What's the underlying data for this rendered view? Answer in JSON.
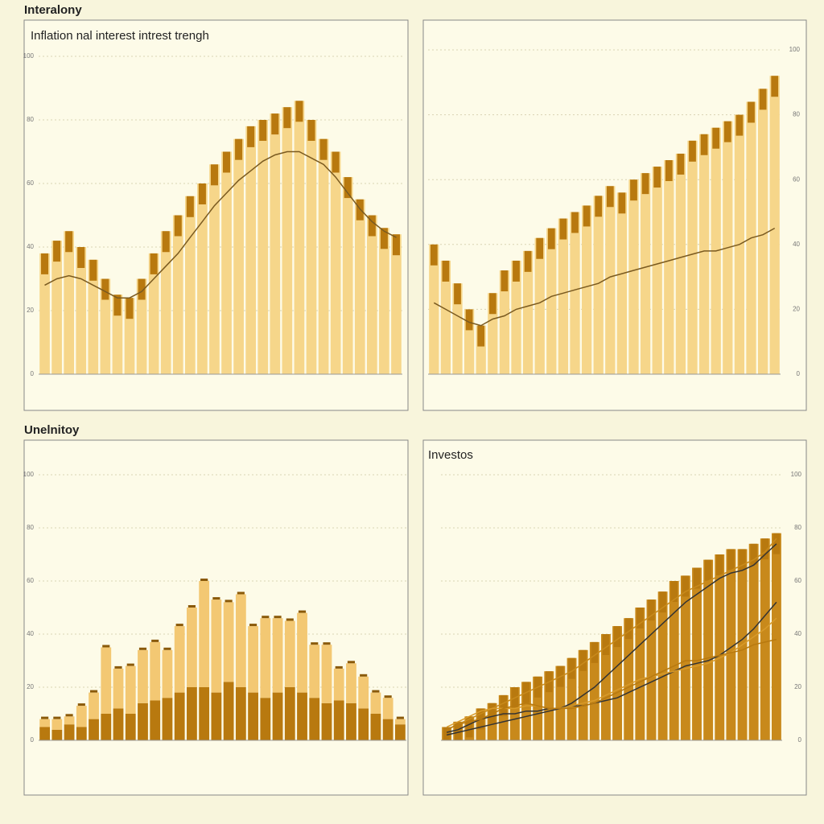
{
  "headings": [
    "Interalony",
    "Unelnitoy"
  ],
  "chart_data": [
    {
      "type": "combo",
      "title": "Inflation nal interest intrest trengh",
      "ylim": [
        0,
        100
      ],
      "yticks": [
        0,
        20,
        40,
        60,
        80,
        100
      ],
      "grid": true,
      "yaxis_side": "left",
      "series": [
        {
          "type": "bar",
          "color": "#b8790f",
          "fill": "#f6d68a",
          "values": [
            38,
            42,
            45,
            40,
            36,
            30,
            25,
            24,
            30,
            38,
            45,
            50,
            56,
            60,
            66,
            70,
            74,
            78,
            80,
            82,
            84,
            86,
            80,
            74,
            70,
            62,
            55,
            50,
            46,
            44
          ]
        },
        {
          "type": "line",
          "color": "#7a5a20",
          "values": [
            28,
            30,
            31,
            30,
            28,
            26,
            24,
            24,
            26,
            30,
            34,
            38,
            43,
            48,
            53,
            57,
            61,
            64,
            67,
            69,
            70,
            70,
            68,
            66,
            62,
            57,
            52,
            48,
            45,
            43
          ]
        }
      ]
    },
    {
      "type": "combo",
      "ylim": [
        0,
        100
      ],
      "yticks": [
        0,
        20,
        40,
        60,
        80,
        100
      ],
      "grid": true,
      "yaxis_side": "right",
      "series": [
        {
          "type": "bar",
          "color": "#b8790f",
          "fill": "#f6d68a",
          "values": [
            40,
            35,
            28,
            20,
            15,
            25,
            32,
            35,
            38,
            42,
            45,
            48,
            50,
            52,
            55,
            58,
            56,
            60,
            62,
            64,
            66,
            68,
            72,
            74,
            76,
            78,
            80,
            84,
            88,
            92
          ]
        },
        {
          "type": "line",
          "color": "#7a5a20",
          "values": [
            22,
            20,
            18,
            16,
            15,
            17,
            18,
            20,
            21,
            22,
            24,
            25,
            26,
            27,
            28,
            30,
            31,
            32,
            33,
            34,
            35,
            36,
            37,
            38,
            38,
            39,
            40,
            42,
            43,
            45
          ]
        }
      ]
    },
    {
      "type": "combo",
      "stacked": true,
      "ylim": [
        0,
        100
      ],
      "yticks": [
        0,
        20,
        40,
        60,
        80,
        100
      ],
      "grid": true,
      "yaxis_side": "left",
      "series": [
        {
          "type": "bar",
          "color": "#b8790f",
          "fill": "#b8790f",
          "values": [
            5,
            4,
            6,
            5,
            8,
            10,
            12,
            10,
            14,
            15,
            16,
            18,
            20,
            20,
            18,
            22,
            20,
            18,
            16,
            18,
            20,
            18,
            16,
            14,
            15,
            14,
            12,
            10,
            8,
            6
          ]
        },
        {
          "type": "bar",
          "color": "#f3c873",
          "fill": "#f3c873",
          "values": [
            3,
            4,
            3,
            8,
            10,
            25,
            15,
            18,
            20,
            22,
            18,
            25,
            30,
            40,
            35,
            30,
            35,
            25,
            30,
            28,
            25,
            30,
            20,
            22,
            12,
            15,
            12,
            8,
            8,
            2
          ]
        }
      ]
    },
    {
      "type": "combo",
      "title": "Investos",
      "ylim": [
        0,
        100
      ],
      "yticks": [
        0,
        20,
        40,
        60,
        80,
        100
      ],
      "grid": true,
      "yaxis_side": "right",
      "series": [
        {
          "type": "bar",
          "color": "#b8790f",
          "fill": "#c8891b",
          "values": [
            5,
            7,
            9,
            12,
            14,
            17,
            20,
            22,
            24,
            26,
            28,
            31,
            34,
            37,
            40,
            43,
            46,
            50,
            53,
            56,
            60,
            62,
            65,
            68,
            70,
            72,
            72,
            74,
            76,
            78
          ]
        },
        {
          "type": "line",
          "color": "#333333",
          "values": [
            2,
            3,
            4,
            5,
            6,
            7,
            8,
            9,
            10,
            11,
            12,
            14,
            17,
            20,
            24,
            28,
            32,
            36,
            40,
            44,
            48,
            52,
            55,
            58,
            61,
            63,
            64,
            66,
            70,
            74
          ]
        },
        {
          "type": "line",
          "color": "#c88a1c",
          "values": [
            4,
            6,
            8,
            10,
            12,
            14,
            16,
            18,
            20,
            22,
            24,
            26,
            29,
            32,
            35,
            38,
            41,
            44,
            47,
            50,
            53,
            56,
            58,
            60,
            62,
            64,
            66,
            68,
            71,
            76
          ]
        },
        {
          "type": "line",
          "color": "#333333",
          "values": [
            3,
            4,
            6,
            8,
            9,
            10,
            10,
            11,
            11,
            12,
            12,
            13,
            13,
            14,
            15,
            16,
            18,
            20,
            22,
            24,
            26,
            28,
            29,
            30,
            32,
            35,
            38,
            42,
            47,
            52
          ]
        },
        {
          "type": "line",
          "color": "#d89a2a",
          "values": [
            5,
            7,
            9,
            11,
            12,
            12,
            12,
            13,
            13,
            12,
            12,
            13,
            14,
            15,
            17,
            19,
            21,
            23,
            24,
            25,
            26,
            27,
            28,
            29,
            31,
            33,
            36,
            39,
            42,
            46
          ]
        },
        {
          "type": "line",
          "color": "#b8790f",
          "values": [
            4,
            6,
            7,
            8,
            10,
            12,
            13,
            14,
            13,
            12,
            12,
            12,
            13,
            14,
            16,
            18,
            20,
            22,
            24,
            26,
            28,
            30,
            30,
            31,
            32,
            33,
            34,
            36,
            37,
            38
          ]
        }
      ]
    }
  ]
}
